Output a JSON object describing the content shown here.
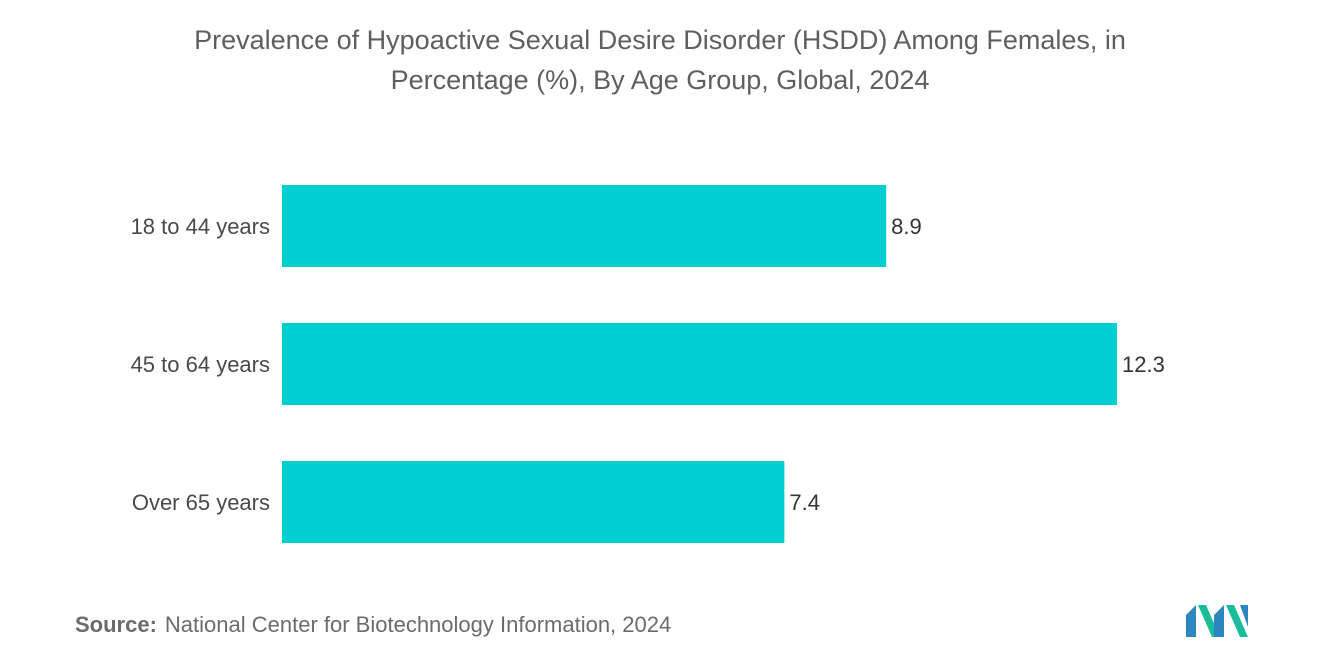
{
  "title": {
    "line1": "Prevalence of Hypoactive Sexual Desire Disorder (HSDD) Among Females, in",
    "line2": "Percentage (%), By Age Group, Global, 2024"
  },
  "source": {
    "label": "Source:",
    "text": "National Center for Biotechnology Information, 2024"
  },
  "colors": {
    "bar": "#00cfd1",
    "logo_left": "#2e86c1",
    "logo_right": "#1abc9c"
  },
  "chart_data": {
    "type": "bar",
    "orientation": "horizontal",
    "title": "Prevalence of Hypoactive Sexual Desire Disorder (HSDD) Among Females, in Percentage (%), By Age Group, Global, 2024",
    "categories": [
      "18 to 44 years",
      "45 to 64 years",
      "Over 65  years"
    ],
    "values": [
      8.9,
      12.3,
      7.4
    ],
    "data_labels": [
      "8.9",
      "12.3",
      "7.4"
    ],
    "xlim": [
      0,
      12.3
    ],
    "grid": false,
    "legend": "none"
  }
}
